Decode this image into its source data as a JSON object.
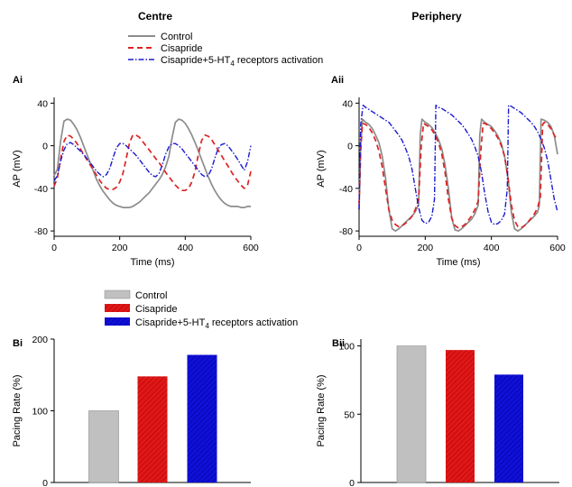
{
  "colors": {
    "control": "#8c8c8c",
    "cisapride": "#dd2222",
    "cisapride_5ht4": "#1a1ad0",
    "bar_control": "#c0c0c0",
    "bar_cisapride": "#e01818",
    "bar_cisapride_5ht4": "#1010d8"
  },
  "column_titles": {
    "left": "Centre",
    "right": "Periphery"
  },
  "legend_top": {
    "items": [
      {
        "key": "control",
        "label": "Control",
        "style": "solid"
      },
      {
        "key": "cisapride",
        "label": "Cisapride",
        "style": "dashed"
      },
      {
        "key": "cisapride_5ht4",
        "label_main": "Cisapride+5-HT",
        "label_sub": "4",
        "label_tail": " receptors activation",
        "style": "dashdot"
      }
    ]
  },
  "legend_bottom": {
    "items": [
      {
        "key": "control",
        "label": "Control"
      },
      {
        "key": "cisapride",
        "label": "Cisapride"
      },
      {
        "key": "cisapride_5ht4",
        "label_main": "Cisapride+5-HT",
        "label_sub": "4",
        "label_tail": " receptors activation"
      }
    ]
  },
  "chart_data": [
    {
      "id": "Ai",
      "panel_label": "Ai",
      "type": "line",
      "xlabel": "Time (ms)",
      "ylabel": "AP (mV)",
      "xlim": [
        0,
        600
      ],
      "ylim": [
        -85,
        42
      ],
      "xticks": [
        0,
        200,
        400,
        600
      ],
      "yticks": [
        -80,
        -40,
        0,
        40
      ],
      "series": [
        {
          "key": "control",
          "name": "Control",
          "x": [
            0,
            10,
            20,
            30,
            40,
            50,
            60,
            70,
            80,
            90,
            100,
            110,
            120,
            130,
            140,
            150,
            160,
            170,
            180,
            190,
            200,
            210,
            220,
            230,
            240,
            250,
            260,
            270,
            280,
            290,
            300,
            310,
            320,
            330,
            340,
            350,
            360,
            370,
            380,
            390,
            400,
            410,
            420,
            430,
            440,
            450,
            460,
            470,
            480,
            490,
            500,
            510,
            520,
            530,
            540,
            550,
            560,
            570,
            580,
            590,
            600
          ],
          "y": [
            -28,
            -22,
            5,
            23,
            25,
            24,
            20,
            15,
            8,
            0,
            -8,
            -16,
            -24,
            -32,
            -38,
            -43,
            -47,
            -51,
            -54,
            -56,
            -57,
            -58,
            -58,
            -58,
            -57,
            -55,
            -53,
            -50,
            -47,
            -44,
            -40,
            -36,
            -32,
            -27,
            -20,
            -10,
            8,
            22,
            25,
            24,
            21,
            16,
            10,
            3,
            -5,
            -13,
            -21,
            -29,
            -36,
            -42,
            -47,
            -51,
            -54,
            -56,
            -57,
            -57,
            -57,
            -58,
            -58,
            -57,
            -57
          ]
        },
        {
          "key": "cisapride",
          "name": "Cisapride",
          "x": [
            0,
            10,
            20,
            30,
            40,
            50,
            60,
            70,
            80,
            90,
            100,
            110,
            120,
            130,
            140,
            150,
            160,
            170,
            180,
            190,
            200,
            210,
            220,
            230,
            240,
            250,
            260,
            270,
            280,
            290,
            300,
            310,
            320,
            330,
            340,
            350,
            360,
            370,
            380,
            390,
            400,
            410,
            420,
            430,
            440,
            450,
            460,
            470,
            480,
            490,
            500,
            510,
            520,
            530,
            540,
            550,
            560,
            570,
            580,
            590,
            600
          ],
          "y": [
            -38,
            -30,
            -12,
            4,
            10,
            9,
            6,
            2,
            -3,
            -8,
            -13,
            -18,
            -23,
            -28,
            -33,
            -37,
            -40,
            -41,
            -41,
            -39,
            -34,
            -26,
            -12,
            3,
            10,
            10,
            8,
            4,
            0,
            -4,
            -8,
            -12,
            -16,
            -20,
            -25,
            -29,
            -33,
            -37,
            -40,
            -42,
            -42,
            -40,
            -34,
            -24,
            -8,
            5,
            10,
            9,
            6,
            1,
            -4,
            -9,
            -14,
            -19,
            -24,
            -29,
            -33,
            -37,
            -40,
            -37,
            -24
          ]
        },
        {
          "key": "cisapride_5ht4",
          "name": "Cisapride+5-HT4 receptors activation",
          "x": [
            0,
            10,
            20,
            30,
            40,
            50,
            60,
            70,
            80,
            90,
            100,
            110,
            120,
            130,
            140,
            150,
            160,
            170,
            180,
            190,
            200,
            210,
            220,
            230,
            240,
            250,
            260,
            270,
            280,
            290,
            300,
            310,
            320,
            330,
            340,
            350,
            360,
            370,
            380,
            390,
            400,
            410,
            420,
            430,
            440,
            450,
            460,
            470,
            480,
            490,
            500,
            510,
            520,
            530,
            540,
            550,
            560,
            570,
            580,
            590,
            600
          ],
          "y": [
            -33,
            -28,
            -14,
            -4,
            2,
            3,
            1,
            -2,
            -5,
            -8,
            -12,
            -16,
            -20,
            -24,
            -27,
            -29,
            -27,
            -21,
            -11,
            -2,
            2,
            2,
            0,
            -3,
            -6,
            -9,
            -13,
            -17,
            -21,
            -25,
            -28,
            -29,
            -26,
            -18,
            -8,
            -1,
            2,
            2,
            0,
            -3,
            -7,
            -11,
            -15,
            -19,
            -23,
            -27,
            -29,
            -28,
            -22,
            -12,
            -3,
            1,
            2,
            0,
            -4,
            -8,
            -13,
            -18,
            -23,
            -15,
            0
          ]
        }
      ]
    },
    {
      "id": "Aii",
      "panel_label": "Aii",
      "type": "line",
      "xlabel": "Time (ms)",
      "ylabel": "AP (mV)",
      "xlim": [
        0,
        600
      ],
      "ylim": [
        -85,
        42
      ],
      "xticks": [
        0,
        200,
        400,
        600
      ],
      "yticks": [
        -80,
        -40,
        0,
        40
      ],
      "series": [
        {
          "key": "control",
          "name": "Control",
          "x": [
            0,
            5,
            10,
            20,
            30,
            40,
            50,
            60,
            70,
            80,
            90,
            100,
            110,
            120,
            130,
            140,
            150,
            160,
            170,
            180,
            185,
            190,
            200,
            210,
            220,
            230,
            240,
            250,
            260,
            270,
            280,
            290,
            300,
            310,
            320,
            330,
            340,
            350,
            360,
            365,
            370,
            380,
            390,
            400,
            410,
            420,
            430,
            440,
            450,
            460,
            470,
            480,
            490,
            500,
            510,
            520,
            530,
            540,
            545,
            550,
            560,
            570,
            580,
            590,
            600
          ],
          "y": [
            -60,
            0,
            25,
            22,
            20,
            16,
            10,
            3,
            -10,
            -30,
            -60,
            -78,
            -80,
            -78,
            -75,
            -72,
            -69,
            -66,
            -62,
            -55,
            10,
            25,
            22,
            20,
            17,
            12,
            6,
            -3,
            -18,
            -40,
            -68,
            -79,
            -80,
            -78,
            -75,
            -72,
            -69,
            -64,
            -56,
            10,
            25,
            22,
            20,
            18,
            14,
            9,
            2,
            -10,
            -30,
            -62,
            -78,
            -80,
            -78,
            -75,
            -72,
            -69,
            -66,
            -62,
            -56,
            25,
            24,
            22,
            18,
            10,
            -8
          ]
        },
        {
          "key": "cisapride",
          "name": "Cisapride",
          "x": [
            0,
            5,
            10,
            20,
            30,
            40,
            50,
            60,
            70,
            80,
            90,
            100,
            110,
            120,
            130,
            140,
            150,
            160,
            170,
            180,
            188,
            195,
            200,
            210,
            220,
            230,
            240,
            250,
            260,
            270,
            280,
            290,
            300,
            310,
            320,
            330,
            340,
            350,
            360,
            368,
            375,
            380,
            390,
            400,
            410,
            420,
            430,
            440,
            450,
            460,
            470,
            480,
            490,
            500,
            510,
            520,
            530,
            540,
            548,
            555,
            560,
            570,
            580,
            590,
            600
          ],
          "y": [
            -55,
            -5,
            21,
            20,
            17,
            12,
            5,
            -5,
            -20,
            -40,
            -60,
            -70,
            -74,
            -76,
            -75,
            -73,
            -70,
            -66,
            -60,
            -50,
            0,
            21,
            20,
            18,
            15,
            10,
            3,
            -8,
            -25,
            -50,
            -68,
            -75,
            -77,
            -76,
            -74,
            -70,
            -66,
            -60,
            -52,
            -5,
            21,
            21,
            19,
            16,
            12,
            7,
            0,
            -10,
            -30,
            -55,
            -70,
            -76,
            -77,
            -75,
            -72,
            -68,
            -64,
            -58,
            -48,
            20,
            22,
            20,
            16,
            10,
            5
          ]
        },
        {
          "key": "cisapride_5ht4",
          "name": "Cisapride+5-HT4 receptors activation",
          "x": [
            0,
            5,
            12,
            20,
            30,
            40,
            50,
            60,
            70,
            80,
            90,
            100,
            110,
            120,
            130,
            140,
            150,
            160,
            170,
            180,
            190,
            200,
            210,
            220,
            228,
            232,
            240,
            250,
            260,
            270,
            280,
            290,
            300,
            310,
            320,
            330,
            340,
            350,
            360,
            370,
            380,
            390,
            400,
            410,
            420,
            430,
            440,
            448,
            452,
            460,
            470,
            480,
            490,
            500,
            510,
            520,
            530,
            540,
            550,
            560,
            570,
            580,
            590,
            600
          ],
          "y": [
            -60,
            20,
            38,
            36,
            34,
            32,
            30,
            28,
            26,
            24,
            22,
            18,
            14,
            10,
            5,
            -2,
            -10,
            -22,
            -40,
            -58,
            -70,
            -73,
            -72,
            -66,
            -50,
            38,
            36,
            35,
            33,
            31,
            29,
            26,
            23,
            20,
            16,
            11,
            6,
            -1,
            -10,
            -25,
            -45,
            -62,
            -72,
            -74,
            -73,
            -70,
            -64,
            -40,
            38,
            37,
            35,
            33,
            31,
            28,
            25,
            22,
            18,
            13,
            6,
            -2,
            -14,
            -32,
            -50,
            -62
          ]
        }
      ]
    },
    {
      "id": "Bi",
      "panel_label": "Bi",
      "type": "bar",
      "ylabel": "Pacing Rate (%)",
      "ylim": [
        0,
        200
      ],
      "yticks": [
        0,
        100,
        200
      ],
      "categories": [
        "Control",
        "Cisapride",
        "Cisapride+5-HT4 receptors activation"
      ],
      "keys": [
        "control",
        "cisapride",
        "cisapride_5ht4"
      ],
      "values": [
        100,
        148,
        178
      ]
    },
    {
      "id": "Bii",
      "panel_label": "Bii",
      "type": "bar",
      "ylabel": "Pacing Rate (%)",
      "ylim": [
        0,
        105
      ],
      "yticks": [
        0,
        50,
        100
      ],
      "categories": [
        "Control",
        "Cisapride",
        "Cisapride+5-HT4 receptors activation"
      ],
      "keys": [
        "control",
        "cisapride",
        "cisapride_5ht4"
      ],
      "values": [
        100,
        97,
        79
      ]
    }
  ]
}
